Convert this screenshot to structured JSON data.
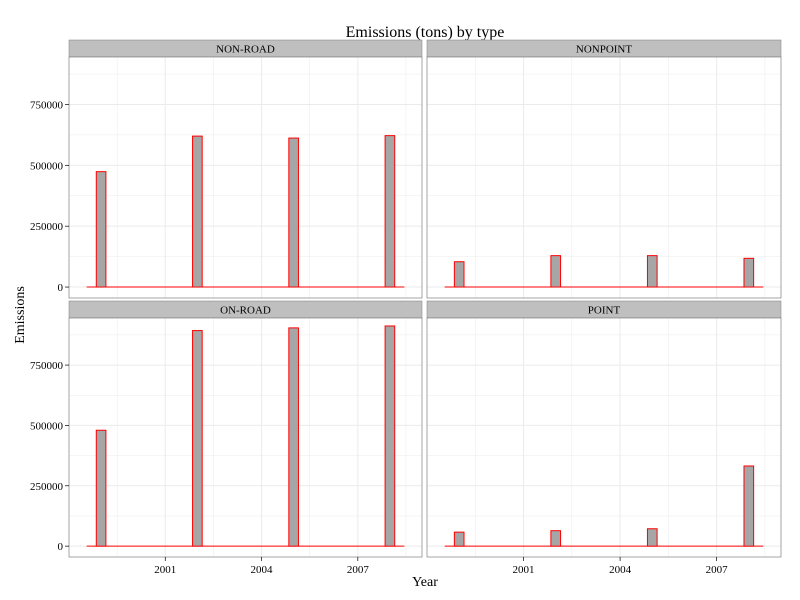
{
  "chart_data": {
    "type": "bar",
    "title": "Emissions (tons) by type",
    "xlabel": "Year",
    "ylabel": "Emissions",
    "x": [
      1999,
      2002,
      2005,
      2008
    ],
    "x_ticks": [
      2001,
      2004,
      2007
    ],
    "x_tick_labels": [
      "2001",
      "2004",
      "2007"
    ],
    "xlim": [
      1998.0,
      2009.0
    ],
    "ylim": [
      -45000,
      945000
    ],
    "y_ticks": [
      0,
      250000,
      500000,
      750000
    ],
    "y_tick_labels": [
      "0",
      "250000",
      "500000",
      "750000"
    ],
    "grid": true,
    "bar_fill": "#a6a6a6",
    "bar_stroke": "#ff0000",
    "panel_border": "#7f7f7f",
    "grid_color": "#ebebeb",
    "strip_fill": "#bfbfbf",
    "panels": [
      {
        "name": "NON-ROAD",
        "values": [
          474000,
          620000,
          612000,
          622000
        ]
      },
      {
        "name": "NONPOINT",
        "values": [
          104000,
          129000,
          129000,
          118000
        ]
      },
      {
        "name": "ON-ROAD",
        "values": [
          480000,
          893000,
          904000,
          912000
        ]
      },
      {
        "name": "POINT",
        "values": [
          58000,
          64000,
          72000,
          332000
        ]
      }
    ]
  }
}
